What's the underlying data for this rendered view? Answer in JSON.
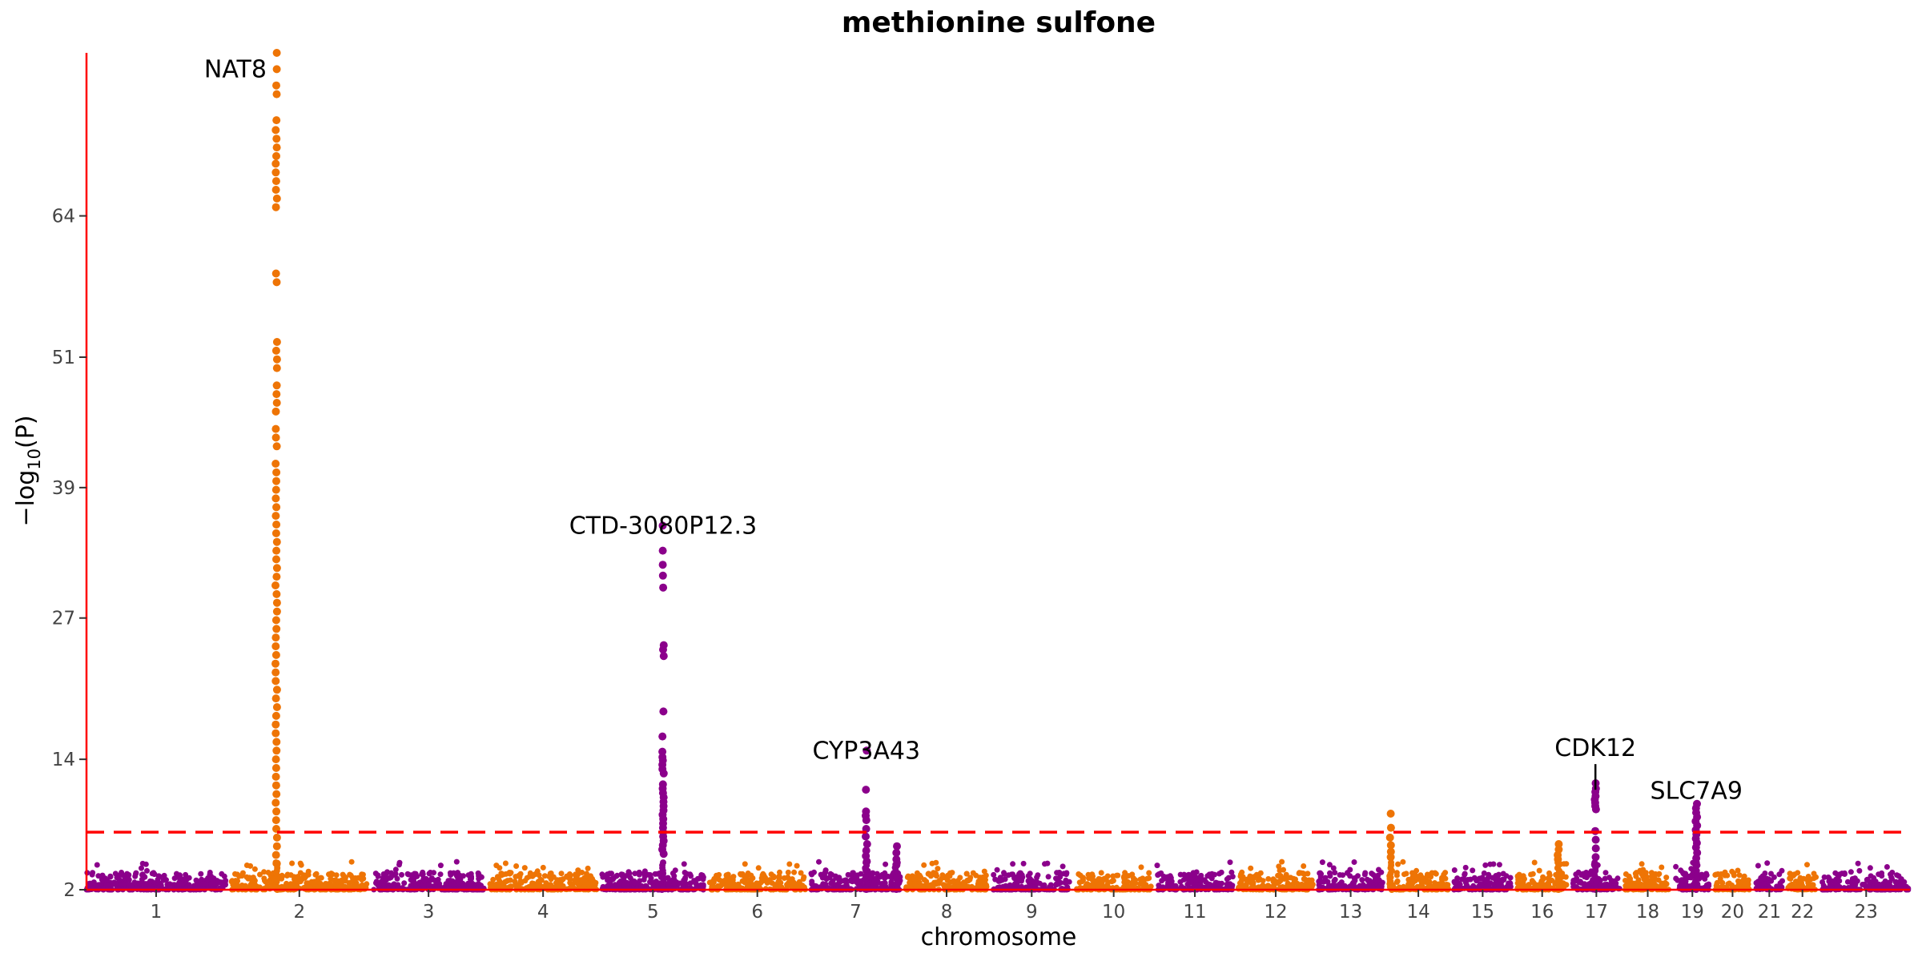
{
  "chart_data": {
    "type": "scatter",
    "title": "methionine sulfone",
    "xlabel": "chromosome",
    "ylabel": "−log10(P)",
    "ylim": [
      2,
      79
    ],
    "yticks": [
      "2",
      "14",
      "27",
      "39",
      "51",
      "64"
    ],
    "threshold": 7.3,
    "colors": {
      "odd": "#8B008B",
      "even": "#EE7405",
      "axis": "#FF0000",
      "threshold": "#FF0000",
      "connector": "#000000"
    },
    "legend": "none",
    "grid": false,
    "chromosomes": [
      {
        "label": "1",
        "size": 248
      },
      {
        "label": "2",
        "size": 242
      },
      {
        "label": "3",
        "size": 198
      },
      {
        "label": "4",
        "size": 190
      },
      {
        "label": "5",
        "size": 181
      },
      {
        "label": "6",
        "size": 171
      },
      {
        "label": "7",
        "size": 159
      },
      {
        "label": "8",
        "size": 145
      },
      {
        "label": "9",
        "size": 138
      },
      {
        "label": "10",
        "size": 134
      },
      {
        "label": "11",
        "size": 135
      },
      {
        "label": "12",
        "size": 133
      },
      {
        "label": "13",
        "size": 114
      },
      {
        "label": "14",
        "size": 107
      },
      {
        "label": "15",
        "size": 102
      },
      {
        "label": "16",
        "size": 90
      },
      {
        "label": "17",
        "size": 83
      },
      {
        "label": "18",
        "size": 80
      },
      {
        "label": "19",
        "size": 59
      },
      {
        "label": "20",
        "size": 64
      },
      {
        "label": "21",
        "size": 47
      },
      {
        "label": "22",
        "size": 51
      },
      {
        "label": "23",
        "size": 156
      }
    ],
    "peaks": [
      {
        "gene": "NAT8",
        "chrom": "2",
        "pos": 0.33,
        "max": 79,
        "values": [
          79,
          77.5,
          76,
          75.2,
          72.8,
          71.9,
          71.1,
          70.3,
          69.5,
          68.8,
          68,
          67.2,
          66.4,
          65.6,
          64.8,
          58.7,
          57.9,
          52.4,
          51.6,
          50.8,
          50,
          48.4,
          47.6,
          46.8,
          46,
          44.4,
          43.6,
          42.8,
          41.2,
          40.4,
          39.6,
          38.8,
          38,
          37.2,
          36.4,
          35.6,
          34.8,
          34,
          33.2,
          32.4,
          31.6,
          30.8,
          30,
          29.2,
          28.4,
          27.6,
          26.8,
          26,
          25.2,
          24.4,
          23.6,
          22.8,
          22,
          21.2,
          20.4,
          19.6,
          18.8,
          18,
          17.2,
          16.4,
          15.6,
          14.8,
          14,
          13.2,
          12.4,
          11.6,
          10.8,
          10,
          9.2,
          8.4,
          7.6,
          6.8,
          6,
          5.2,
          4.4
        ]
      },
      {
        "gene": "CTD-3080P12.3",
        "chrom": "5",
        "pos": 0.6,
        "max": 35.5,
        "values": [
          35.5,
          33.2,
          31.9,
          30.9,
          29.8,
          24.5,
          24.1,
          23.5,
          18.4,
          16.1,
          14.7,
          14.2,
          13.9,
          13.5,
          13.1,
          12.7,
          11.7,
          11.3,
          10.9,
          10.5,
          10.1,
          9.7,
          9.3,
          8.9,
          8.5,
          8.1,
          7.7,
          7.3,
          6.9,
          6.5,
          6.1,
          5.7,
          5.3
        ]
      },
      {
        "gene": "CYP3A43",
        "chrom": "7",
        "pos": 0.62,
        "max": 14.8,
        "values": [
          14.8,
          11.2,
          9.2,
          8.8,
          8.4,
          7.6,
          6.9,
          6.2,
          5.6,
          5.1,
          4.6
        ]
      },
      {
        "gene": "",
        "chrom": "7",
        "pos": 0.96,
        "max": 6.0,
        "values": [
          6.0,
          5.4,
          4.8,
          4.3
        ]
      },
      {
        "gene": "",
        "chrom": "14",
        "pos": 0.04,
        "max": 9.0,
        "values": [
          9.0,
          7.7,
          6.8,
          6.1,
          5.5,
          5.0
        ]
      },
      {
        "gene": "",
        "chrom": "16",
        "pos": 0.82,
        "max": 6.2,
        "values": [
          6.2,
          5.7,
          5.2,
          4.8
        ]
      },
      {
        "gene": "CDK12",
        "chrom": "17",
        "pos": 0.48,
        "max": 11.8,
        "values": [
          11.8,
          11.3,
          11.0,
          10.6,
          10.3,
          10.0,
          9.7,
          9.4,
          7.4,
          6.6,
          5.8,
          5.0,
          4.3
        ]
      },
      {
        "gene": "SLC7A9",
        "chrom": "19",
        "pos": 0.62,
        "max": 9.9,
        "values": [
          9.9,
          9.5,
          9.1,
          8.7,
          8.3,
          7.9,
          7.5,
          7.1,
          6.7,
          6.3,
          5.9,
          5.4,
          4.9,
          4.4
        ]
      }
    ],
    "annotations": [
      {
        "text": "NAT8",
        "chrom": "2",
        "pos": 0.33,
        "y": 77.5,
        "anchor": "end",
        "connector": false
      },
      {
        "text": "CTD-3080P12.3",
        "chrom": "5",
        "pos": 0.6,
        "y": 35.5,
        "anchor": "middle",
        "connector": false
      },
      {
        "text": "CYP3A43",
        "chrom": "7",
        "pos": 0.62,
        "y": 14.8,
        "anchor": "middle",
        "connector": false
      },
      {
        "text": "CDK12",
        "chrom": "17",
        "pos": 0.48,
        "y": 14.0,
        "anchor": "middle",
        "connector": true
      },
      {
        "text": "SLC7A9",
        "chrom": "19",
        "pos": 0.62,
        "y": 11.1,
        "anchor": "middle",
        "connector": false
      }
    ]
  }
}
